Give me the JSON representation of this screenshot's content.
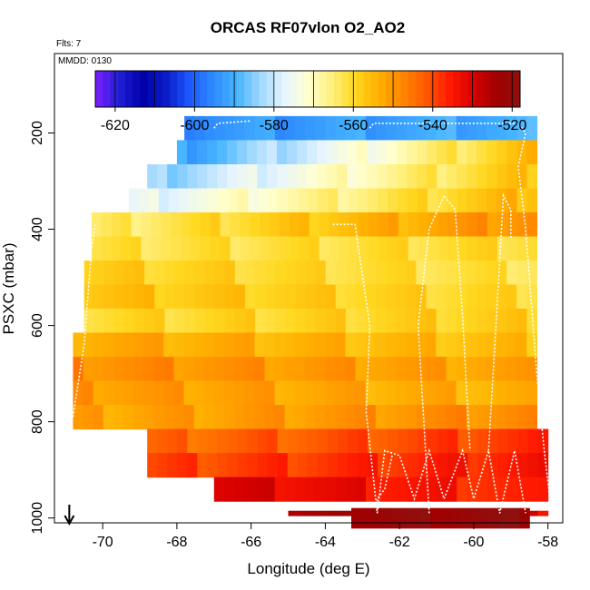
{
  "chart_data": {
    "type": "heatmap",
    "title": "ORCAS RF07vlon O2_AO2",
    "subtitle_flts": "Flts: 7",
    "subtitle_mmdd": "MMDD: 0130",
    "xlabel": "Longitude (deg E)",
    "ylabel": "PSXC (mbar)",
    "xlim": [
      -71.3,
      -57.6
    ],
    "ylim": [
      1010,
      35
    ],
    "y_reversed": true,
    "grid": false,
    "x_ticks": [
      -70,
      -68,
      -66,
      -64,
      -62,
      -60,
      -58
    ],
    "y_ticks": [
      200,
      400,
      600,
      800,
      1000
    ],
    "colorbar": {
      "min": -625,
      "max": -518,
      "ticks": [
        -620,
        -600,
        -580,
        -560,
        -540,
        -520
      ],
      "colors": [
        "#7f1fff",
        "#1f1fd8",
        "#0000a8",
        "#0a1cc8",
        "#1c58ff",
        "#2e8cff",
        "#46b4ff",
        "#a0d8ff",
        "#e6f4ff",
        "#ffffd0",
        "#fff080",
        "#ffd820",
        "#ffb000",
        "#ff8800",
        "#ff5a00",
        "#ff1a00",
        "#d80000",
        "#a00000",
        "#901010"
      ]
    },
    "value_rows": [
      {
        "p": 190,
        "x0": -67.8,
        "x1": -58.3,
        "v": -594,
        "v_end": -590
      },
      {
        "p": 240,
        "x0": -68.0,
        "x1": -58.3,
        "v": -592,
        "v_end": -555
      },
      {
        "p": 290,
        "x0": -68.8,
        "x1": -58.3,
        "v": -585,
        "v_end": -556
      },
      {
        "p": 340,
        "x0": -69.3,
        "x1": -58.3,
        "v": -578,
        "v_end": -554
      },
      {
        "p": 390,
        "x0": -70.3,
        "x1": -58.3,
        "v": -565,
        "v_end": -548
      },
      {
        "p": 440,
        "x0": -70.3,
        "x1": -58.3,
        "v": -562,
        "v_end": -560
      },
      {
        "p": 490,
        "x0": -70.5,
        "x1": -58.3,
        "v": -558,
        "v_end": -562
      },
      {
        "p": 540,
        "x0": -70.5,
        "x1": -58.3,
        "v": -556,
        "v_end": -560
      },
      {
        "p": 590,
        "x0": -70.5,
        "x1": -58.3,
        "v": -560,
        "v_end": -558
      },
      {
        "p": 640,
        "x0": -70.8,
        "x1": -58.3,
        "v": -552,
        "v_end": -556
      },
      {
        "p": 690,
        "x0": -70.8,
        "x1": -58.3,
        "v": -548,
        "v_end": -552
      },
      {
        "p": 740,
        "x0": -70.8,
        "x1": -58.3,
        "v": -550,
        "v_end": -554
      },
      {
        "p": 790,
        "x0": -70.8,
        "x1": -58.3,
        "v": -552,
        "v_end": -548
      },
      {
        "p": 840,
        "x0": -68.8,
        "x1": -58.0,
        "v": -544,
        "v_end": -538
      },
      {
        "p": 890,
        "x0": -68.8,
        "x1": -58.0,
        "v": -540,
        "v_end": -535
      },
      {
        "p": 940,
        "x0": -67.0,
        "x1": -58.0,
        "v": -530,
        "v_end": -538
      },
      {
        "p": 990,
        "x0": -65.0,
        "x1": -58.0,
        "v": -524,
        "v_end": -532
      },
      {
        "p": 1000,
        "x0": -63.3,
        "x1": -58.5,
        "v": -522,
        "v_end": -520
      }
    ],
    "flight_tracks": [
      [
        [
          -70.8,
          790
        ],
        [
          -70.5,
          640
        ],
        [
          -70.3,
          440
        ],
        [
          -70.2,
          390
        ]
      ],
      [
        [
          -67.0,
          190
        ],
        [
          -66.9,
          180
        ],
        [
          -66.0,
          175
        ]
      ],
      [
        [
          -63.8,
          390
        ],
        [
          -63.2,
          390
        ],
        [
          -62.8,
          600
        ],
        [
          -62.9,
          780
        ],
        [
          -62.6,
          990
        ]
      ],
      [
        [
          -62.6,
          990
        ],
        [
          -62.4,
          860
        ],
        [
          -62.0,
          870
        ],
        [
          -61.6,
          960
        ],
        [
          -61.2,
          860
        ],
        [
          -60.8,
          960
        ],
        [
          -60.3,
          860
        ],
        [
          -60.0,
          960
        ],
        [
          -59.6,
          860
        ],
        [
          -59.3,
          990
        ],
        [
          -58.9,
          860
        ],
        [
          -58.6,
          990
        ]
      ],
      [
        [
          -62.8,
          190
        ],
        [
          -62.7,
          180
        ],
        [
          -58.8,
          180
        ],
        [
          -58.6,
          200
        ],
        [
          -58.8,
          270
        ],
        [
          -58.6,
          400
        ],
        [
          -58.3,
          700
        ],
        [
          -58.1,
          860
        ],
        [
          -57.9,
          990
        ]
      ],
      [
        [
          -61.2,
          990
        ],
        [
          -61.3,
          860
        ],
        [
          -61.5,
          600
        ],
        [
          -61.2,
          400
        ],
        [
          -60.8,
          330
        ],
        [
          -60.5,
          360
        ],
        [
          -60.3,
          580
        ],
        [
          -60.1,
          860
        ]
      ],
      [
        [
          -59.6,
          860
        ],
        [
          -59.4,
          600
        ],
        [
          -59.2,
          330
        ],
        [
          -59.0,
          360
        ],
        [
          -59.0,
          420
        ]
      ],
      [
        [
          -62.2,
          870
        ],
        [
          -62.4,
          940
        ],
        [
          -62.6,
          960
        ],
        [
          -62.6,
          980
        ]
      ]
    ],
    "marker": {
      "x": -70.9,
      "label": "arrow"
    }
  }
}
